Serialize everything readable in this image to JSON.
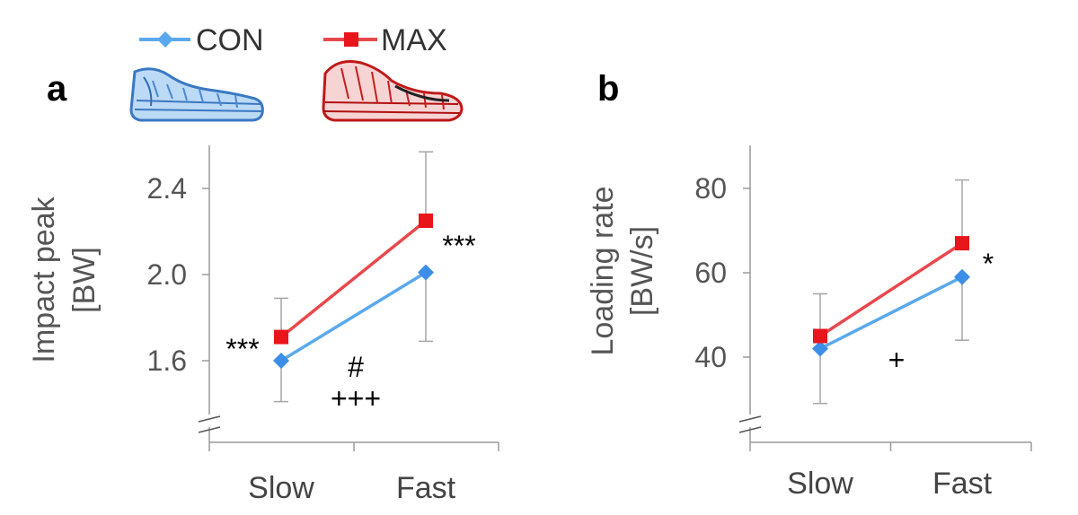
{
  "legend": [
    {
      "name": "CON",
      "color": "#5aa9ec",
      "marker": "diamond"
    },
    {
      "name": "MAX",
      "color": "#e8484d",
      "marker": "square"
    }
  ],
  "icons": {
    "con_shoe": "blue-running-shoe-icon",
    "max_shoe": "red-running-shoe-icon"
  },
  "chart_data": [
    {
      "panel": "a",
      "type": "line",
      "categories": [
        "Slow",
        "Fast"
      ],
      "ylabel_line1": "Impact peak",
      "ylabel_line2": "[BW]",
      "yticks": [
        "1.6",
        "2.0",
        "2.4"
      ],
      "yticks_values": [
        1.6,
        2.0,
        2.4
      ],
      "ylim": [
        1.25,
        2.6
      ],
      "axis_break": true,
      "series": [
        {
          "name": "CON",
          "color": "#5aa9ec",
          "values": [
            1.6,
            2.01
          ],
          "err_lower": [
            0.19,
            0.32
          ],
          "err_upper": [
            0.0,
            0.0
          ]
        },
        {
          "name": "MAX",
          "color": "#e8484d",
          "values": [
            1.71,
            2.25
          ],
          "err_lower": [
            0.0,
            0.0
          ],
          "err_upper": [
            0.18,
            0.32
          ]
        }
      ],
      "annotations": [
        {
          "text": "***",
          "at": "slow-left"
        },
        {
          "text": "***",
          "at": "fast-right"
        },
        {
          "text": "#",
          "at": "middle-upper"
        },
        {
          "text": "+++",
          "at": "middle-lower"
        }
      ]
    },
    {
      "panel": "b",
      "type": "line",
      "categories": [
        "Slow",
        "Fast"
      ],
      "ylabel_line1": "Loading rate",
      "ylabel_line2": "[BW/s]",
      "yticks": [
        "40",
        "60",
        "80"
      ],
      "yticks_values": [
        40,
        60,
        80
      ],
      "ylim": [
        20,
        90
      ],
      "axis_break": true,
      "series": [
        {
          "name": "CON",
          "color": "#5aa9ec",
          "values": [
            42,
            59
          ],
          "err_lower": [
            13,
            15
          ],
          "err_upper": [
            0,
            0
          ]
        },
        {
          "name": "MAX",
          "color": "#e8484d",
          "values": [
            45,
            67
          ],
          "err_lower": [
            0,
            0
          ],
          "err_upper": [
            10,
            15
          ]
        }
      ],
      "annotations": [
        {
          "text": "*",
          "at": "fast-right"
        },
        {
          "text": "+",
          "at": "middle-lower"
        }
      ]
    }
  ]
}
